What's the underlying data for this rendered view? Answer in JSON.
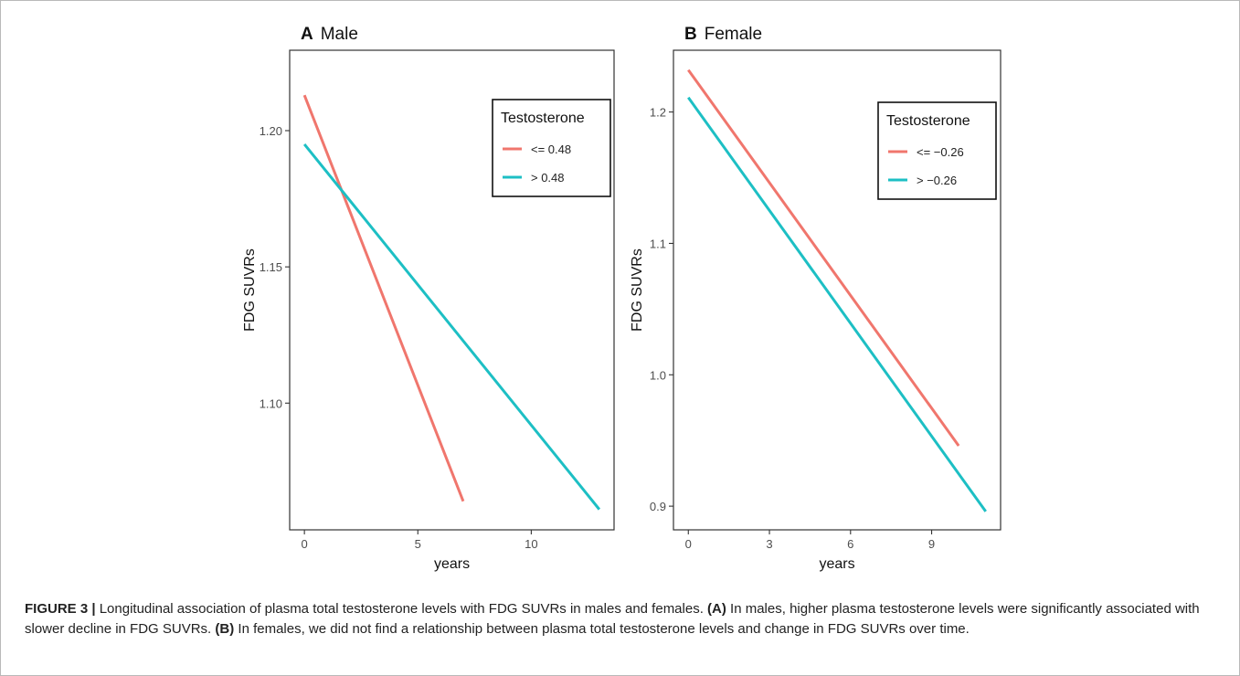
{
  "chart_data": [
    {
      "type": "line",
      "panel_letter": "A",
      "title": "Male",
      "xlabel": "years",
      "ylabel": "FDG SUVRs",
      "xlim": [
        -0.65,
        13.65
      ],
      "ylim": [
        1.0535,
        1.2295
      ],
      "xticks": [
        0,
        5,
        10
      ],
      "xtick_labels": [
        "0",
        "5",
        "10"
      ],
      "yticks": [
        1.1,
        1.15,
        1.2
      ],
      "ytick_labels": [
        "1.10",
        "1.15",
        "1.20"
      ],
      "grid": false,
      "legend": {
        "title": "Testosterone",
        "placement": "top-right"
      },
      "series": [
        {
          "name": "<= 0.48",
          "color": "#F0766D",
          "x": [
            0,
            7
          ],
          "y": [
            1.213,
            1.064
          ]
        },
        {
          "name": "> 0.48",
          "color": "#1DBFC4",
          "x": [
            0,
            13
          ],
          "y": [
            1.195,
            1.061
          ]
        }
      ]
    },
    {
      "type": "line",
      "panel_letter": "B",
      "title": "Female",
      "xlabel": "years",
      "ylabel": "FDG SUVRs",
      "xlim": [
        -0.55,
        11.55
      ],
      "ylim": [
        0.882,
        1.247
      ],
      "xticks": [
        0,
        3,
        6,
        9
      ],
      "xtick_labels": [
        "0",
        "3",
        "6",
        "9"
      ],
      "yticks": [
        0.9,
        1.0,
        1.1,
        1.2
      ],
      "ytick_labels": [
        "0.9",
        "1.0",
        "1.1",
        "1.2"
      ],
      "grid": false,
      "legend": {
        "title": "Testosterone",
        "placement": "top-right"
      },
      "series": [
        {
          "name": "<= −0.26",
          "color": "#F0766D",
          "x": [
            0,
            10
          ],
          "y": [
            1.232,
            0.946
          ]
        },
        {
          "name": "> −0.26",
          "color": "#1DBFC4",
          "x": [
            0,
            11
          ],
          "y": [
            1.211,
            0.896
          ]
        }
      ]
    }
  ],
  "caption": {
    "label": "FIGURE 3 |",
    "text_intro": " Longitudinal association of plasma total testosterone levels with FDG SUVRs in males and females. ",
    "part_a_label": "(A)",
    "part_a_text": " In males, higher plasma testosterone levels were significantly associated with slower decline in FDG SUVRs. ",
    "part_b_label": "(B)",
    "part_b_text": " In females, we did not find a relationship between plasma total testosterone levels and change in FDG SUVRs over time."
  }
}
